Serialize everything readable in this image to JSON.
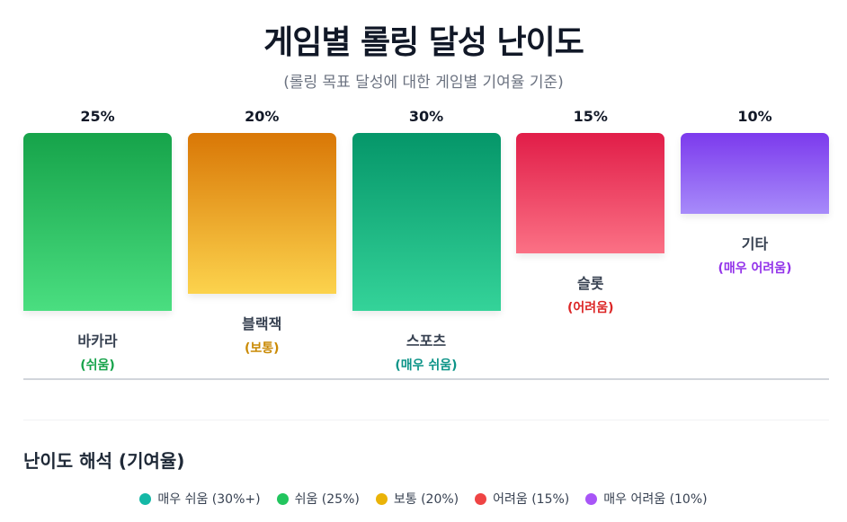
{
  "title": "게임별 롤링 달성 난이도",
  "subtitle": "(롤링 목표 달성에 대한 게임별 기여율 기준)",
  "chart_data": {
    "type": "bar",
    "categories": [
      "바카라",
      "블랙잭",
      "스포츠",
      "슬롯",
      "기타"
    ],
    "values": [
      25,
      20,
      30,
      15,
      10
    ],
    "value_labels": [
      "25%",
      "20%",
      "30%",
      "15%",
      "10%"
    ],
    "difficulty": [
      "(쉬움)",
      "(보통)",
      "(매우 쉬움)",
      "(어려움)",
      "(매우 어려움)"
    ],
    "bar_gradients": [
      [
        "#16a34a",
        "#4ade80"
      ],
      [
        "#d97706",
        "#fcd34d"
      ],
      [
        "#059669",
        "#34d399"
      ],
      [
        "#e11d48",
        "#fb7185"
      ],
      [
        "#7c3aed",
        "#a78bfa"
      ]
    ],
    "difficulty_colors": [
      "#16a34a",
      "#ca8a04",
      "#0d9488",
      "#dc2626",
      "#9333ea"
    ],
    "grid": false
  },
  "legend": {
    "title": "난이도 해석 (기여율)",
    "items": [
      {
        "label": "매우 쉬움 (30%+)",
        "color": "#14b8a6"
      },
      {
        "label": "쉬움 (25%)",
        "color": "#22c55e"
      },
      {
        "label": "보통 (20%)",
        "color": "#eab308"
      },
      {
        "label": "어려움 (15%)",
        "color": "#ef4444"
      },
      {
        "label": "매우 어려움 (10%)",
        "color": "#a855f7"
      }
    ]
  }
}
